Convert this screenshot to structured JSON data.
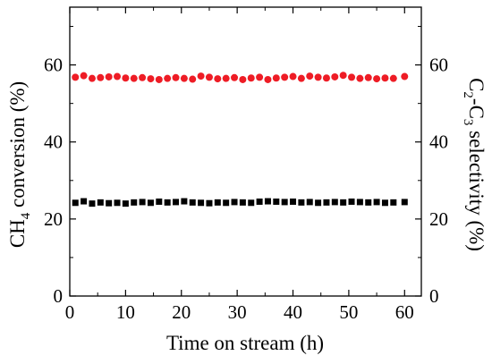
{
  "chart_data": {
    "type": "scatter",
    "xlabel": "Time on stream (h)",
    "ylabel_left": {
      "base": "CH",
      "sub": "4",
      "rest": " conversion (%)"
    },
    "ylabel_right": {
      "p1": "C",
      "s1": "2",
      "p2": "-C",
      "s2": "3",
      "p3": " selectivity (%)"
    },
    "xlim": [
      0,
      63
    ],
    "ylim_left": [
      0,
      75
    ],
    "ylim_right": [
      0,
      75
    ],
    "xticks": [
      0,
      10,
      20,
      30,
      40,
      50,
      60
    ],
    "yticks_left": [
      0,
      20,
      40,
      60
    ],
    "yticks_right": [
      0,
      20,
      40,
      60
    ],
    "grid": false,
    "series": [
      {
        "axis": "left",
        "marker": "square",
        "color": "#000000",
        "x": [
          1,
          2.5,
          4,
          5.5,
          7,
          8.5,
          10,
          11.5,
          13,
          14.5,
          16,
          17.5,
          19,
          20.5,
          22,
          23.5,
          25,
          26.5,
          28,
          29.5,
          31,
          32.5,
          34,
          35.5,
          37,
          38.5,
          40,
          41.5,
          43,
          44.5,
          46,
          47.5,
          49,
          50.5,
          52,
          53.5,
          55,
          56.5,
          58,
          60
        ],
        "values": [
          24.2,
          24.6,
          24.0,
          24.3,
          24.1,
          24.2,
          24.0,
          24.3,
          24.4,
          24.2,
          24.5,
          24.3,
          24.4,
          24.6,
          24.3,
          24.2,
          24.1,
          24.3,
          24.2,
          24.4,
          24.3,
          24.2,
          24.5,
          24.6,
          24.5,
          24.4,
          24.5,
          24.3,
          24.4,
          24.2,
          24.3,
          24.4,
          24.3,
          24.5,
          24.4,
          24.3,
          24.4,
          24.2,
          24.3,
          24.4
        ]
      },
      {
        "axis": "right",
        "marker": "circle",
        "color": "#ee1c25",
        "x": [
          1,
          2.5,
          4,
          5.5,
          7,
          8.5,
          10,
          11.5,
          13,
          14.5,
          16,
          17.5,
          19,
          20.5,
          22,
          23.5,
          25,
          26.5,
          28,
          29.5,
          31,
          32.5,
          34,
          35.5,
          37,
          38.5,
          40,
          41.5,
          43,
          44.5,
          46,
          47.5,
          49,
          50.5,
          52,
          53.5,
          55,
          56.5,
          58,
          60
        ],
        "values": [
          56.8,
          57.2,
          56.5,
          56.7,
          56.9,
          57.0,
          56.6,
          56.5,
          56.7,
          56.4,
          56.2,
          56.5,
          56.7,
          56.5,
          56.3,
          57.1,
          56.8,
          56.4,
          56.5,
          56.7,
          56.2,
          56.6,
          56.8,
          56.2,
          56.6,
          56.8,
          57.0,
          56.5,
          57.1,
          56.8,
          56.6,
          56.9,
          57.3,
          56.8,
          56.5,
          56.7,
          56.4,
          56.6,
          56.5,
          57.0
        ]
      }
    ]
  }
}
